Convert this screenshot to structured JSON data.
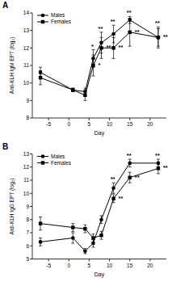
{
  "chart_data": [
    {
      "type": "line",
      "title": "A",
      "x_label": "Day",
      "y_label": "Anti-KLH IgM EPT (log₂)",
      "x": [
        -7,
        1,
        4,
        6,
        8,
        11,
        15,
        22
      ],
      "xlim": [
        -9,
        24
      ],
      "xticks": [
        -5,
        0,
        5,
        10,
        15,
        20
      ],
      "ylim": [
        8,
        14
      ],
      "yticks": [
        8,
        9,
        10,
        11,
        12,
        13,
        14
      ],
      "legend": "upper left",
      "series": [
        {
          "name": "Males",
          "color": "#000000",
          "marker": "circle",
          "line_style": "solid",
          "values": [
            10.6,
            9.6,
            9.5,
            11.4,
            12.3,
            12.8,
            13.6,
            12.6
          ],
          "errors": [
            0.3,
            0.1,
            0.2,
            0.5,
            0.6,
            0.5,
            0.2,
            0.6
          ],
          "annotations": [
            null,
            null,
            null,
            "*",
            "**",
            "**",
            "**",
            "**"
          ]
        },
        {
          "name": "Females",
          "color": "#000000",
          "marker": "square",
          "line_style": "solid",
          "values": [
            10.3,
            9.6,
            9.3,
            11.0,
            12.0,
            12.0,
            12.9,
            12.6
          ],
          "errors": [
            0.4,
            0.1,
            0.3,
            0.6,
            0.6,
            0.6,
            0.8,
            0.5
          ],
          "annotations": [
            null,
            null,
            null,
            "*",
            "**",
            "**",
            "**",
            "**"
          ]
        }
      ]
    },
    {
      "type": "line",
      "title": "B",
      "x_label": "Day",
      "y_label": "Anti-KLH IgG EPT (log₂)",
      "x": [
        -7,
        1,
        4,
        6,
        8,
        11,
        15,
        22
      ],
      "xlim": [
        -9,
        24
      ],
      "xticks": [
        -5,
        0,
        5,
        10,
        15,
        20
      ],
      "ylim": [
        5,
        13
      ],
      "yticks": [
        5,
        6,
        7,
        8,
        9,
        10,
        11,
        12,
        13
      ],
      "legend": "upper left",
      "series": [
        {
          "name": "Males",
          "color": "#000000",
          "marker": "circle",
          "line_style": "solid",
          "values": [
            6.3,
            6.6,
            5.6,
            6.2,
            8.0,
            10.4,
            12.3,
            12.3
          ],
          "errors": [
            0.3,
            0.4,
            0.2,
            0.3,
            0.3,
            0.4,
            0.3,
            0.3
          ],
          "annotations": [
            null,
            null,
            null,
            null,
            null,
            "**",
            "**",
            "**"
          ]
        },
        {
          "name": "Females",
          "color": "#000000",
          "marker": "square",
          "line_style": "solid",
          "values": [
            7.7,
            7.4,
            7.3,
            6.6,
            6.8,
            9.6,
            11.2,
            11.9
          ],
          "errors": [
            0.5,
            0.3,
            0.3,
            0.3,
            0.3,
            0.3,
            0.4,
            0.4
          ],
          "annotations": [
            null,
            null,
            null,
            null,
            null,
            "**",
            "**",
            "**"
          ]
        }
      ]
    }
  ]
}
